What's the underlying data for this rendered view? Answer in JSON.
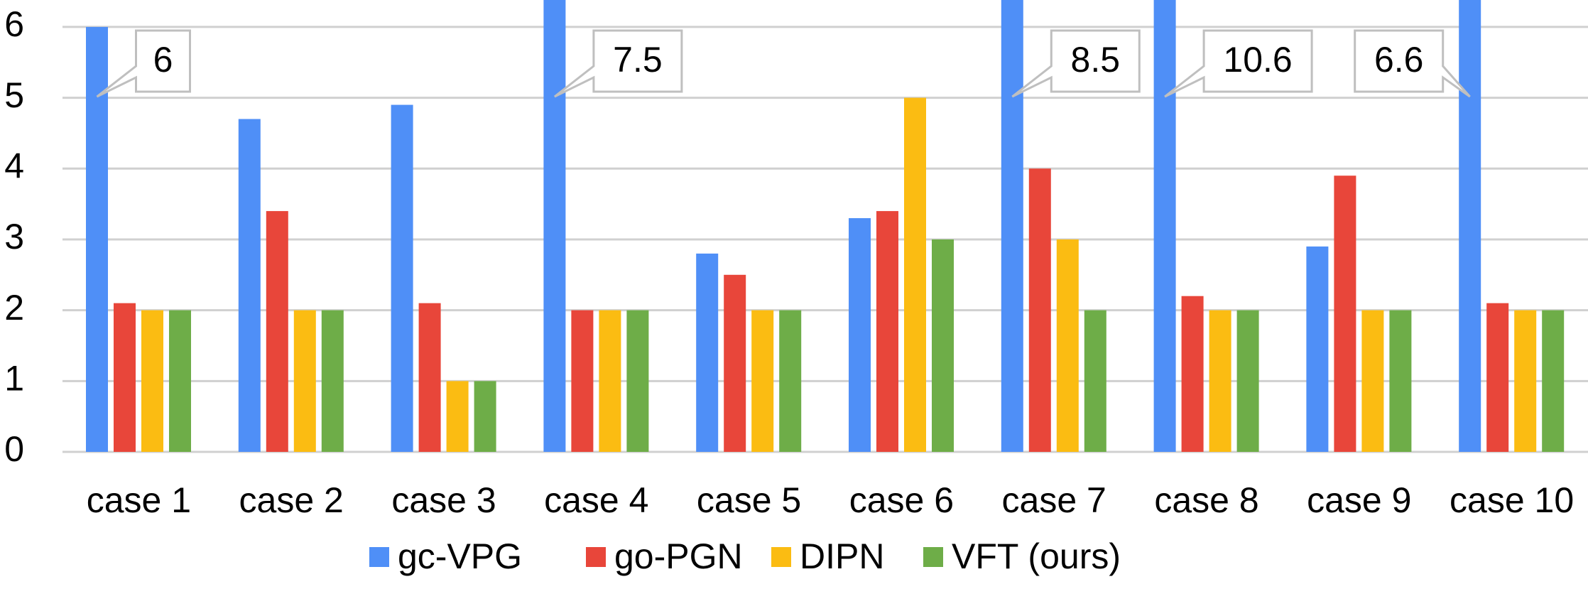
{
  "chart_data": {
    "type": "bar",
    "categories": [
      "case 1",
      "case 2",
      "case 3",
      "case 4",
      "case 5",
      "case 6",
      "case 7",
      "case 8",
      "case 9",
      "case 10"
    ],
    "series": [
      {
        "name": "gc-VPG",
        "color": "#4f8ff7",
        "values": [
          6,
          4.7,
          4.9,
          7.5,
          2.8,
          3.3,
          8.5,
          10.6,
          2.9,
          6.6
        ],
        "value_labels": [
          "6",
          null,
          null,
          "7.5",
          null,
          null,
          "8.5",
          "10.6",
          null,
          "6.6"
        ]
      },
      {
        "name": "go-PGN",
        "color": "#e8463a",
        "values": [
          2.1,
          3.4,
          2.1,
          2,
          2.5,
          3.4,
          4,
          2.2,
          3.9,
          2.1
        ]
      },
      {
        "name": "DIPN",
        "color": "#fbbc12",
        "values": [
          2,
          2,
          1,
          2,
          2,
          5,
          3,
          2,
          2,
          2
        ]
      },
      {
        "name": "VFT (ours)",
        "color": "#6ead48",
        "values": [
          2,
          2,
          1,
          2,
          2,
          3,
          2,
          2,
          2,
          2
        ]
      }
    ],
    "ylim": [
      0,
      6.3
    ],
    "yticks": [
      0,
      1,
      2,
      3,
      4,
      5,
      6
    ],
    "grid": true
  }
}
